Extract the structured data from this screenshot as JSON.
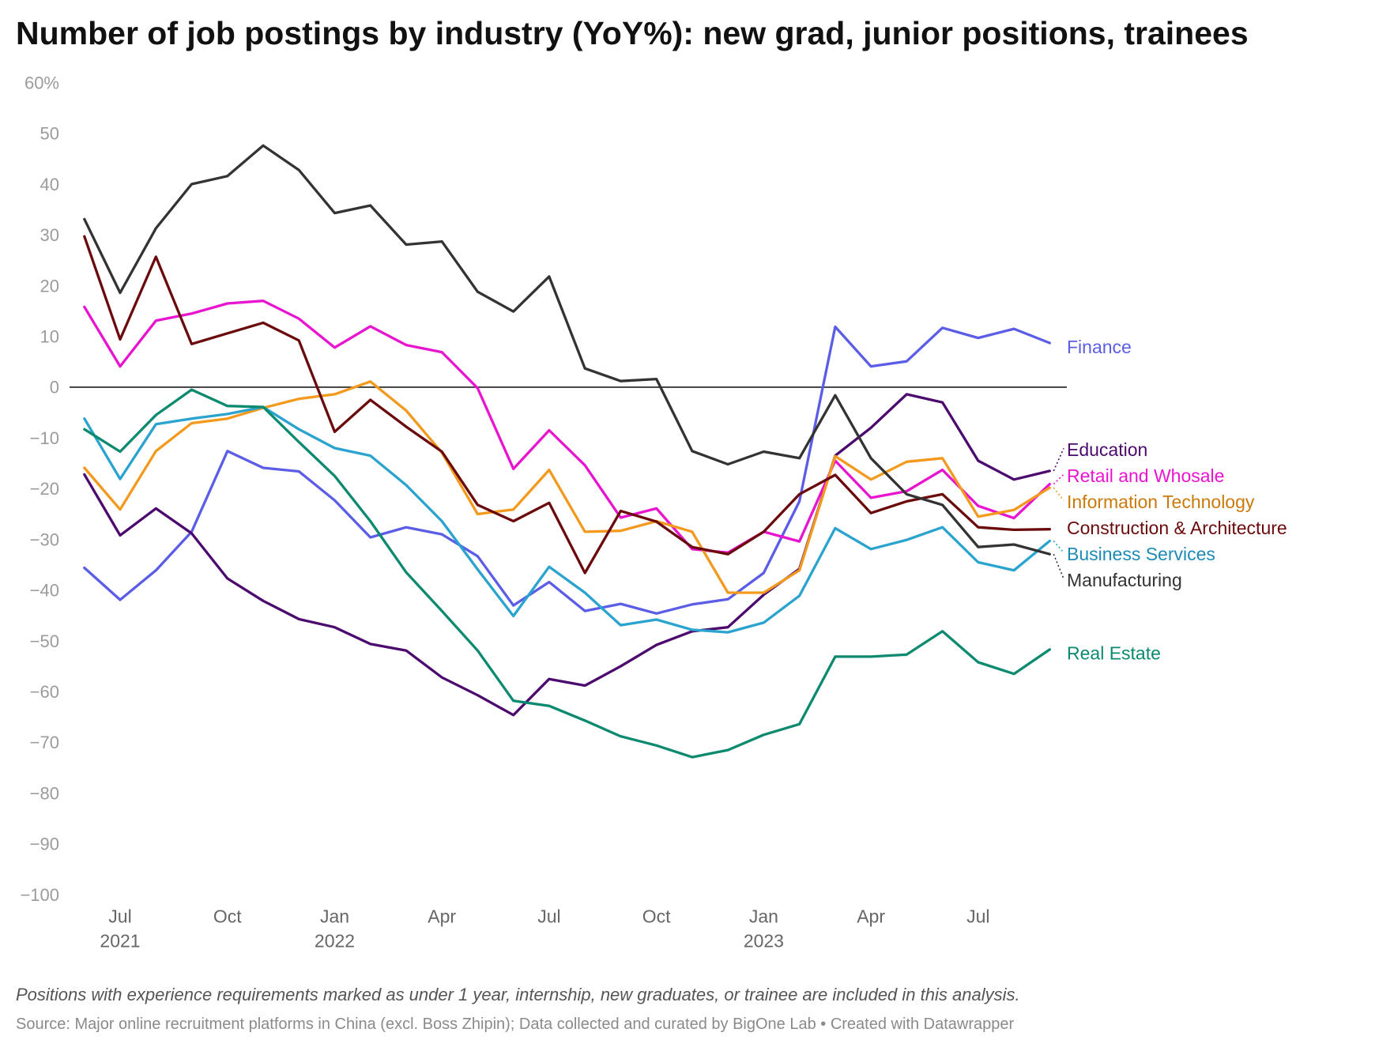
{
  "chart_data": {
    "type": "line",
    "title": "Number of job postings by industry (YoY%): new grad, junior positions, trainees",
    "note": "Positions with experience requirements marked as under 1 year, internship, new graduates, or trainee are included in this analysis.",
    "source": "Source: Major online recruitment platforms in China (excl. Boss Zhipin); Data collected and curated by BigOne Lab • Created with Datawrapper",
    "ylim": [
      -100,
      60
    ],
    "reference_line": {
      "value": 0
    },
    "x": [
      [
        2021,
        6
      ],
      [
        2021,
        7
      ],
      [
        2021,
        8
      ],
      [
        2021,
        9
      ],
      [
        2021,
        10
      ],
      [
        2021,
        11
      ],
      [
        2021,
        12
      ],
      [
        2022,
        1
      ],
      [
        2022,
        2
      ],
      [
        2022,
        3
      ],
      [
        2022,
        4
      ],
      [
        2022,
        5
      ],
      [
        2022,
        6
      ],
      [
        2022,
        7
      ],
      [
        2022,
        8
      ],
      [
        2022,
        9
      ],
      [
        2022,
        10
      ],
      [
        2022,
        11
      ],
      [
        2022,
        12
      ],
      [
        2023,
        1
      ],
      [
        2023,
        2
      ],
      [
        2023,
        3
      ],
      [
        2023,
        4
      ],
      [
        2023,
        5
      ],
      [
        2023,
        6
      ],
      [
        2023,
        7
      ],
      [
        2023,
        8
      ],
      [
        2023,
        9
      ]
    ],
    "x_ticks": [
      {
        "year": 2021,
        "month": 7,
        "label": "Jul",
        "year_label": "2021"
      },
      {
        "year": 2021,
        "month": 10,
        "label": "Oct"
      },
      {
        "year": 2022,
        "month": 1,
        "label": "Jan",
        "year_label": "2022"
      },
      {
        "year": 2022,
        "month": 4,
        "label": "Apr"
      },
      {
        "year": 2022,
        "month": 7,
        "label": "Jul"
      },
      {
        "year": 2022,
        "month": 10,
        "label": "Oct"
      },
      {
        "year": 2023,
        "month": 1,
        "label": "Jan",
        "year_label": "2023"
      },
      {
        "year": 2023,
        "month": 4,
        "label": "Apr"
      },
      {
        "year": 2023,
        "month": 7,
        "label": "Jul"
      }
    ],
    "y_ticks": [
      {
        "value": 60,
        "label": "60%"
      },
      {
        "value": 50,
        "label": "50"
      },
      {
        "value": 40,
        "label": "40"
      },
      {
        "value": 30,
        "label": "30"
      },
      {
        "value": 20,
        "label": "20"
      },
      {
        "value": 10,
        "label": "10"
      },
      {
        "value": 0,
        "label": "0"
      },
      {
        "value": -10,
        "label": "−10"
      },
      {
        "value": -20,
        "label": "−20"
      },
      {
        "value": -30,
        "label": "−30"
      },
      {
        "value": -40,
        "label": "−40"
      },
      {
        "value": -50,
        "label": "−50"
      },
      {
        "value": -60,
        "label": "−60"
      },
      {
        "value": -70,
        "label": "−70"
      },
      {
        "value": -80,
        "label": "−80"
      },
      {
        "value": -90,
        "label": "−90"
      },
      {
        "value": -100,
        "label": "−100"
      }
    ],
    "series": [
      {
        "name": "Finance",
        "color": "#5b5de6",
        "label_color": "#5b5de6",
        "values": [
          -35.6,
          -41.9,
          -36.1,
          -28.5,
          -12.6,
          -15.9,
          -16.6,
          -22.3,
          -29.6,
          -27.6,
          -29.0,
          -33.3,
          -43.0,
          -38.4,
          -44.1,
          -42.7,
          -44.6,
          -42.8,
          -41.8,
          -36.6,
          -22.5,
          11.9,
          4.1,
          5.1,
          11.7,
          9.7,
          11.5,
          8.7
        ]
      },
      {
        "name": "Education",
        "color": "#4c0a6e",
        "label_color": "#4c0a6e",
        "values": [
          -17.2,
          -29.2,
          -23.9,
          -28.8,
          -37.7,
          -42.1,
          -45.7,
          -47.3,
          -50.6,
          -51.9,
          -57.2,
          -60.7,
          -64.6,
          -57.5,
          -58.8,
          -55.0,
          -50.8,
          -48.1,
          -47.3,
          -40.9,
          -35.8,
          -13.5,
          -8.0,
          -1.4,
          -3.0,
          -14.5,
          -18.2,
          -16.5
        ]
      },
      {
        "name": "Retail and Whosale",
        "color": "#e814cf",
        "label_color": "#e814cf",
        "values": [
          15.8,
          4.1,
          13.1,
          14.5,
          16.5,
          17.0,
          13.5,
          7.8,
          12.0,
          8.3,
          6.9,
          -0.2,
          -16.1,
          -8.5,
          -15.4,
          -25.7,
          -23.9,
          -31.9,
          -32.6,
          -28.5,
          -30.4,
          -14.5,
          -21.8,
          -20.5,
          -16.3,
          -23.4,
          -25.8,
          -19.1
        ]
      },
      {
        "name": "Information Technology",
        "color": "#f39a1e",
        "label_color": "#c97a0a",
        "values": [
          -15.9,
          -24.1,
          -12.6,
          -7.1,
          -6.2,
          -4.1,
          -2.3,
          -1.4,
          1.1,
          -4.6,
          -12.9,
          -25.0,
          -24.1,
          -16.3,
          -28.5,
          -28.3,
          -26.4,
          -28.5,
          -40.5,
          -40.5,
          -36.1,
          -13.6,
          -18.2,
          -14.7,
          -14.0,
          -25.5,
          -24.2,
          -19.8
        ]
      },
      {
        "name": "Construction & Architecture",
        "color": "#6b0a0c",
        "label_color": "#6b0a0c",
        "values": [
          29.7,
          9.4,
          25.7,
          8.5,
          10.6,
          12.7,
          9.2,
          -8.8,
          -2.5,
          -7.8,
          -12.7,
          -23.2,
          -26.4,
          -22.8,
          -36.6,
          -24.4,
          -26.5,
          -31.5,
          -32.9,
          -28.5,
          -21.1,
          -17.3,
          -24.8,
          -22.5,
          -21.1,
          -27.6,
          -28.1,
          -28.0
        ]
      },
      {
        "name": "Business Services",
        "color": "#2aa3cf",
        "label_color": "#1e8bb6",
        "values": [
          -6.2,
          -18.1,
          -7.3,
          -6.2,
          -5.3,
          -3.9,
          -8.3,
          -12.0,
          -13.5,
          -19.3,
          -26.4,
          -35.9,
          -45.1,
          -35.4,
          -40.5,
          -46.9,
          -45.8,
          -47.8,
          -48.3,
          -46.4,
          -41.1,
          -27.8,
          -31.9,
          -30.1,
          -27.6,
          -34.5,
          -36.1,
          -30.3
        ]
      },
      {
        "name": "Manufacturing",
        "color": "#333333",
        "label_color": "#333333",
        "values": [
          33.1,
          18.6,
          31.3,
          40.0,
          41.6,
          47.6,
          42.8,
          34.3,
          35.8,
          28.1,
          28.7,
          18.8,
          14.9,
          21.8,
          3.7,
          1.2,
          1.6,
          -12.6,
          -15.2,
          -12.7,
          -14.0,
          -1.6,
          -14.0,
          -21.1,
          -23.2,
          -31.5,
          -31.0,
          -32.9
        ]
      },
      {
        "name": "Real Estate",
        "color": "#0c8a6f",
        "label_color": "#0c8a6f",
        "values": [
          -8.3,
          -12.7,
          -5.5,
          -0.5,
          -3.7,
          -3.9,
          -10.8,
          -17.5,
          -26.4,
          -36.5,
          -44.1,
          -51.9,
          -61.8,
          -62.8,
          -65.7,
          -68.8,
          -70.6,
          -72.9,
          -71.5,
          -68.5,
          -66.4,
          -53.1,
          -53.1,
          -52.7,
          -48.1,
          -54.2,
          -56.5,
          -51.7
        ]
      }
    ]
  }
}
